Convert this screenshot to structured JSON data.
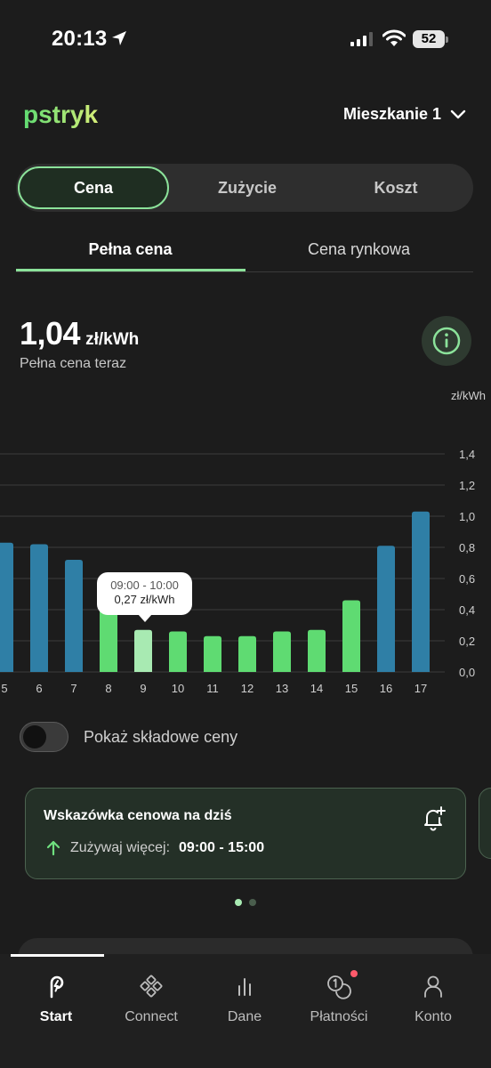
{
  "status_bar": {
    "time": "20:13",
    "battery": "52"
  },
  "header": {
    "logo_text": "pstryk",
    "property": "Mieszkanie 1"
  },
  "segments": [
    {
      "label": "Cena",
      "active": true
    },
    {
      "label": "Zużycie",
      "active": false
    },
    {
      "label": "Koszt",
      "active": false
    }
  ],
  "subtabs": [
    {
      "label": "Pełna cena",
      "active": true
    },
    {
      "label": "Cena rynkowa",
      "active": false
    }
  ],
  "price": {
    "value": "1,04",
    "unit": "zł/kWh",
    "caption": "Pełna cena teraz"
  },
  "chart_data": {
    "type": "bar",
    "y_unit": "zł/kWh",
    "ylim": [
      0,
      1.4
    ],
    "y_ticks": [
      "0,0",
      "0,2",
      "0,4",
      "0,6",
      "0,8",
      "1,0",
      "1,2",
      "1,4"
    ],
    "categories": [
      "5",
      "6",
      "7",
      "8",
      "9",
      "10",
      "11",
      "12",
      "13",
      "14",
      "15",
      "16",
      "17"
    ],
    "values": [
      0.83,
      0.82,
      0.72,
      0.42,
      0.27,
      0.26,
      0.23,
      0.23,
      0.26,
      0.27,
      0.46,
      0.81,
      1.03
    ],
    "bar_colors": [
      "#2f7fa6",
      "#2f7fa6",
      "#2f7fa6",
      "#5fdb72",
      "#a8eab2",
      "#5fdb72",
      "#5fdb72",
      "#5fdb72",
      "#5fdb72",
      "#5fdb72",
      "#5fdb72",
      "#2f7fa6",
      "#2f7fa6"
    ],
    "selected_index": 4,
    "tooltip": {
      "time": "09:00 - 10:00",
      "price": "0,27 zł/kWh"
    },
    "grid": true
  },
  "toggle": {
    "label": "Pokaż składowe ceny",
    "on": false
  },
  "hint_card": {
    "title": "Wskazówka cenowa na dziś",
    "text": "Zużywaj więcej:",
    "time_range": "09:00 - 15:00"
  },
  "nav": [
    {
      "label": "Start",
      "icon": "start-icon",
      "active": true
    },
    {
      "label": "Connect",
      "icon": "connect-icon",
      "active": false
    },
    {
      "label": "Dane",
      "icon": "chart-icon",
      "active": false
    },
    {
      "label": "Płatności",
      "icon": "coins-icon",
      "active": false
    },
    {
      "label": "Konto",
      "icon": "user-icon",
      "active": false
    }
  ],
  "colors": {
    "accent": "#8be29a",
    "green_bar": "#5fdb72",
    "blue_bar": "#2f7fa6",
    "background": "#1c1c1c"
  }
}
